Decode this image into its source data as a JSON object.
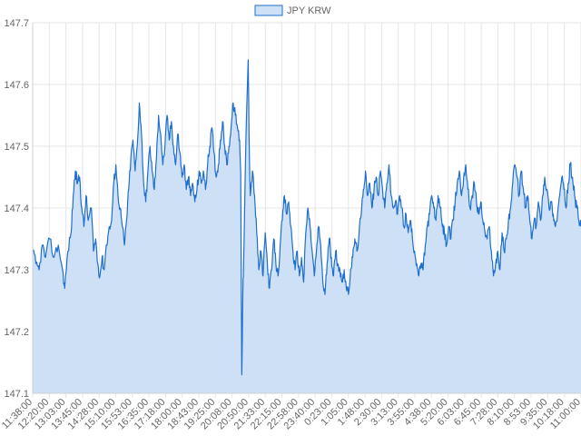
{
  "chart_data": {
    "type": "area",
    "title": "",
    "xlabel": "",
    "ylabel": "",
    "legend": {
      "position": "top-center",
      "entries": [
        "JPY KRW"
      ]
    },
    "grid": true,
    "ylim": [
      147.1,
      147.7
    ],
    "y_ticks": [
      "147.1",
      "147.2",
      "147.3",
      "147.4",
      "147.5",
      "147.6",
      "147.7"
    ],
    "x_tick_labels": [
      "11:38:00",
      "12:20:00",
      "13:03:00",
      "13:45:00",
      "14:28:00",
      "15:10:00",
      "15:53:00",
      "16:35:00",
      "17:18:00",
      "18:00:00",
      "18:43:00",
      "19:25:00",
      "20:08:00",
      "20:50:00",
      "21:33:00",
      "22:15:00",
      "22:58:00",
      "23:40:00",
      "0:23:00",
      "1:05:00",
      "1:48:00",
      "2:30:00",
      "3:13:00",
      "3:55:00",
      "4:38:00",
      "5:20:00",
      "6:03:00",
      "6:45:00",
      "7:28:00",
      "8:10:00",
      "8:53:00",
      "9:35:00",
      "10:18:00",
      "11:00:00"
    ],
    "colors": {
      "line": "#1e6fcf",
      "fill": "#cde0f5",
      "grid": "#e6e6e6"
    },
    "series": [
      {
        "name": "JPY KRW",
        "points": [
          [
            0,
            147.33
          ],
          [
            0.15,
            147.31
          ],
          [
            0.3,
            147.3
          ],
          [
            0.45,
            147.34
          ],
          [
            0.6,
            147.32
          ],
          [
            0.8,
            147.35
          ],
          [
            1.0,
            147.32
          ],
          [
            1.2,
            147.34
          ],
          [
            1.4,
            147.3
          ],
          [
            1.5,
            147.27
          ],
          [
            1.65,
            147.33
          ],
          [
            1.8,
            147.36
          ],
          [
            1.9,
            147.42
          ],
          [
            2.0,
            147.46
          ],
          [
            2.1,
            147.44
          ],
          [
            2.2,
            147.45
          ],
          [
            2.3,
            147.4
          ],
          [
            2.4,
            147.37
          ],
          [
            2.5,
            147.42
          ],
          [
            2.6,
            147.38
          ],
          [
            2.75,
            147.4
          ],
          [
            2.85,
            147.33
          ],
          [
            2.95,
            147.35
          ],
          [
            3.05,
            147.31
          ],
          [
            3.15,
            147.29
          ],
          [
            3.25,
            147.32
          ],
          [
            3.35,
            147.3
          ],
          [
            3.45,
            147.34
          ],
          [
            3.55,
            147.36
          ],
          [
            3.7,
            147.38
          ],
          [
            3.8,
            147.44
          ],
          [
            3.9,
            147.47
          ],
          [
            4.0,
            147.42
          ],
          [
            4.1,
            147.4
          ],
          [
            4.2,
            147.37
          ],
          [
            4.3,
            147.34
          ],
          [
            4.4,
            147.38
          ],
          [
            4.5,
            147.43
          ],
          [
            4.6,
            147.48
          ],
          [
            4.7,
            147.51
          ],
          [
            4.8,
            147.46
          ],
          [
            4.9,
            147.5
          ],
          [
            5.0,
            147.57
          ],
          [
            5.1,
            147.52
          ],
          [
            5.2,
            147.44
          ],
          [
            5.3,
            147.41
          ],
          [
            5.4,
            147.46
          ],
          [
            5.5,
            147.5
          ],
          [
            5.6,
            147.46
          ],
          [
            5.7,
            147.43
          ],
          [
            5.8,
            147.48
          ],
          [
            5.9,
            147.55
          ],
          [
            6.0,
            147.52
          ],
          [
            6.1,
            147.47
          ],
          [
            6.2,
            147.5
          ],
          [
            6.3,
            147.55
          ],
          [
            6.4,
            147.51
          ],
          [
            6.5,
            147.54
          ],
          [
            6.6,
            147.5
          ],
          [
            6.7,
            147.47
          ],
          [
            6.8,
            147.52
          ],
          [
            6.9,
            147.49
          ],
          [
            7.0,
            147.45
          ],
          [
            7.1,
            147.47
          ],
          [
            7.2,
            147.43
          ],
          [
            7.3,
            147.45
          ],
          [
            7.4,
            147.42
          ],
          [
            7.5,
            147.44
          ],
          [
            7.6,
            147.41
          ],
          [
            7.7,
            147.43
          ],
          [
            7.8,
            147.46
          ],
          [
            7.9,
            147.44
          ],
          [
            8.0,
            147.46
          ],
          [
            8.1,
            147.43
          ],
          [
            8.2,
            147.47
          ],
          [
            8.3,
            147.5
          ],
          [
            8.4,
            147.53
          ],
          [
            8.5,
            147.49
          ],
          [
            8.6,
            147.45
          ],
          [
            8.7,
            147.47
          ],
          [
            8.8,
            147.51
          ],
          [
            8.9,
            147.54
          ],
          [
            9.0,
            147.5
          ],
          [
            9.1,
            147.47
          ],
          [
            9.2,
            147.5
          ],
          [
            9.3,
            147.53
          ],
          [
            9.4,
            147.57
          ],
          [
            9.5,
            147.55
          ],
          [
            9.6,
            147.53
          ],
          [
            9.7,
            147.51
          ],
          [
            9.75,
            147.46
          ],
          [
            9.8,
            147.13
          ],
          [
            9.85,
            147.26
          ],
          [
            9.9,
            147.33
          ],
          [
            10.0,
            147.52
          ],
          [
            10.1,
            147.64
          ],
          [
            10.15,
            147.5
          ],
          [
            10.2,
            147.42
          ],
          [
            10.3,
            147.46
          ],
          [
            10.4,
            147.42
          ],
          [
            10.5,
            147.36
          ],
          [
            10.6,
            147.3
          ],
          [
            10.7,
            147.33
          ],
          [
            10.8,
            147.29
          ],
          [
            10.9,
            147.36
          ],
          [
            11.0,
            147.31
          ],
          [
            11.1,
            147.27
          ],
          [
            11.2,
            147.3
          ],
          [
            11.3,
            147.35
          ],
          [
            11.4,
            147.31
          ],
          [
            11.5,
            147.29
          ],
          [
            11.6,
            147.34
          ],
          [
            11.7,
            147.38
          ],
          [
            11.8,
            147.42
          ],
          [
            11.9,
            147.39
          ],
          [
            12.0,
            147.41
          ],
          [
            12.1,
            147.37
          ],
          [
            12.2,
            147.33
          ],
          [
            12.3,
            147.3
          ],
          [
            12.4,
            147.33
          ],
          [
            12.5,
            147.29
          ],
          [
            12.6,
            147.32
          ],
          [
            12.7,
            147.28
          ],
          [
            12.8,
            147.36
          ],
          [
            12.9,
            147.4
          ],
          [
            13.0,
            147.37
          ],
          [
            13.1,
            147.33
          ],
          [
            13.2,
            147.29
          ],
          [
            13.3,
            147.33
          ],
          [
            13.4,
            147.37
          ],
          [
            13.5,
            147.34
          ],
          [
            13.6,
            147.28
          ],
          [
            13.7,
            147.26
          ],
          [
            13.8,
            147.31
          ],
          [
            13.9,
            147.35
          ],
          [
            14.0,
            147.32
          ],
          [
            14.1,
            147.29
          ],
          [
            14.2,
            147.33
          ],
          [
            14.3,
            147.31
          ],
          [
            14.4,
            147.3
          ],
          [
            14.5,
            147.28
          ],
          [
            14.6,
            147.3
          ],
          [
            14.7,
            147.27
          ],
          [
            14.8,
            147.26
          ],
          [
            14.9,
            147.3
          ],
          [
            15.0,
            147.32
          ],
          [
            15.1,
            147.35
          ],
          [
            15.2,
            147.33
          ],
          [
            15.3,
            147.36
          ],
          [
            15.4,
            147.39
          ],
          [
            15.5,
            147.43
          ],
          [
            15.6,
            147.46
          ],
          [
            15.7,
            147.42
          ],
          [
            15.8,
            147.44
          ],
          [
            15.9,
            147.4
          ],
          [
            16.0,
            147.43
          ],
          [
            16.1,
            147.45
          ],
          [
            16.2,
            147.42
          ],
          [
            16.3,
            147.46
          ],
          [
            16.4,
            147.43
          ],
          [
            16.5,
            147.4
          ],
          [
            16.6,
            147.44
          ],
          [
            16.7,
            147.47
          ],
          [
            16.8,
            147.42
          ],
          [
            16.9,
            147.4
          ],
          [
            17.0,
            147.41
          ],
          [
            17.1,
            147.39
          ],
          [
            17.2,
            147.42
          ],
          [
            17.3,
            147.4
          ],
          [
            17.4,
            147.37
          ],
          [
            17.5,
            147.39
          ],
          [
            17.6,
            147.36
          ],
          [
            17.7,
            147.38
          ],
          [
            17.8,
            147.35
          ],
          [
            17.9,
            147.33
          ],
          [
            18.0,
            147.31
          ],
          [
            18.1,
            147.29
          ],
          [
            18.2,
            147.31
          ],
          [
            18.3,
            147.3
          ],
          [
            18.4,
            147.34
          ],
          [
            18.5,
            147.37
          ],
          [
            18.6,
            147.39
          ],
          [
            18.7,
            147.42
          ],
          [
            18.8,
            147.4
          ],
          [
            18.9,
            147.38
          ],
          [
            19.0,
            147.42
          ],
          [
            19.1,
            147.4
          ],
          [
            19.2,
            147.37
          ],
          [
            19.3,
            147.36
          ],
          [
            19.4,
            147.34
          ],
          [
            19.5,
            147.37
          ],
          [
            19.6,
            147.35
          ],
          [
            19.7,
            147.38
          ],
          [
            19.8,
            147.41
          ],
          [
            19.9,
            147.44
          ],
          [
            20.0,
            147.46
          ],
          [
            20.1,
            147.42
          ],
          [
            20.2,
            147.45
          ],
          [
            20.3,
            147.47
          ],
          [
            20.4,
            147.43
          ],
          [
            20.5,
            147.4
          ],
          [
            20.6,
            147.42
          ],
          [
            20.7,
            147.44
          ],
          [
            20.8,
            147.41
          ],
          [
            20.9,
            147.39
          ],
          [
            21.0,
            147.41
          ],
          [
            21.1,
            147.38
          ],
          [
            21.2,
            147.36
          ],
          [
            21.3,
            147.35
          ],
          [
            21.4,
            147.37
          ],
          [
            21.5,
            147.33
          ],
          [
            21.6,
            147.29
          ],
          [
            21.7,
            147.31
          ],
          [
            21.8,
            147.33
          ],
          [
            21.9,
            147.3
          ],
          [
            22.0,
            147.36
          ],
          [
            22.1,
            147.33
          ],
          [
            22.2,
            147.35
          ],
          [
            22.3,
            147.38
          ],
          [
            22.4,
            147.4
          ],
          [
            22.5,
            147.44
          ],
          [
            22.6,
            147.47
          ],
          [
            22.7,
            147.45
          ],
          [
            22.8,
            147.42
          ],
          [
            22.9,
            147.46
          ],
          [
            23.0,
            147.43
          ],
          [
            23.1,
            147.4
          ],
          [
            23.2,
            147.42
          ],
          [
            23.3,
            147.38
          ],
          [
            23.4,
            147.35
          ],
          [
            23.5,
            147.38
          ],
          [
            23.6,
            147.37
          ],
          [
            23.7,
            147.41
          ],
          [
            23.8,
            147.38
          ],
          [
            23.9,
            147.42
          ],
          [
            24.0,
            147.45
          ],
          [
            24.1,
            147.43
          ],
          [
            24.2,
            147.4
          ],
          [
            24.3,
            147.41
          ],
          [
            24.4,
            147.39
          ],
          [
            24.5,
            147.37
          ],
          [
            24.6,
            147.39
          ],
          [
            24.7,
            147.42
          ],
          [
            24.8,
            147.45
          ],
          [
            24.9,
            147.43
          ],
          [
            25.0,
            147.4
          ],
          [
            25.1,
            147.44
          ],
          [
            25.2,
            147.47
          ],
          [
            25.3,
            147.45
          ],
          [
            25.4,
            147.42
          ],
          [
            25.5,
            147.4
          ],
          [
            25.6,
            147.38
          ],
          [
            25.7,
            147.37
          ]
        ]
      }
    ]
  }
}
